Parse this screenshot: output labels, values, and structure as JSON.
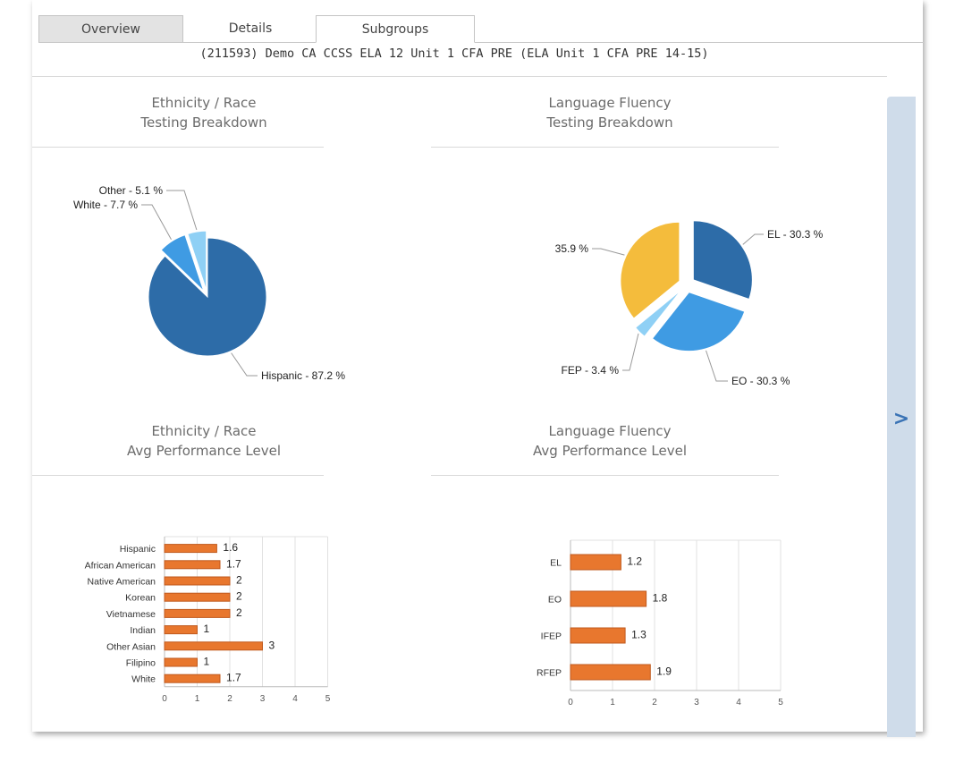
{
  "tabs": [
    {
      "label": "Overview"
    },
    {
      "label": "Details"
    },
    {
      "label": "Subgroups"
    }
  ],
  "assessment_title": "(211593) Demo CA CCSS ELA 12 Unit 1 CFA PRE (ELA Unit 1 CFA PRE 14-15)",
  "side_panel": {
    "arrow": ">"
  },
  "colors": {
    "accent": "#2e6da4",
    "bar": "#e8772e",
    "pie_blue_dark": "#2d6ca8",
    "pie_blue": "#3f9be3",
    "pie_light": "#8fd0f5",
    "pie_yellow": "#f4bc3c"
  },
  "chart_data": [
    {
      "type": "pie",
      "title_line1": "Ethnicity / Race",
      "title_line2": "Testing Breakdown",
      "slices": [
        {
          "label": "Hispanic - 87.2 %",
          "value": 87.2
        },
        {
          "label": "White - 7.7 %",
          "value": 7.7
        },
        {
          "label": "Other - 5.1 %",
          "value": 5.1
        }
      ]
    },
    {
      "type": "pie",
      "title_line1": "Language Fluency",
      "title_line2": "Testing Breakdown",
      "slices": [
        {
          "label": "EL - 30.3 %",
          "value": 30.3
        },
        {
          "label": "EO - 30.3 %",
          "value": 30.3
        },
        {
          "label": "FEP - 3.4 %",
          "value": 3.4
        },
        {
          "label": "35.9 %",
          "value": 35.9
        }
      ]
    },
    {
      "type": "bar",
      "title_line1": "Ethnicity / Race",
      "title_line2": "Avg Performance Level",
      "categories": [
        "Hispanic",
        "African American",
        "Native American",
        "Korean",
        "Vietnamese",
        "Indian",
        "Other Asian",
        "Filipino",
        "White"
      ],
      "values": [
        1.6,
        1.7,
        2,
        2,
        2,
        1,
        3,
        1,
        1.7
      ],
      "value_labels": [
        "1.6",
        "1.7",
        "2",
        "2",
        "2",
        "1",
        "3",
        "1",
        "1.7"
      ],
      "xlim": [
        0,
        5
      ],
      "xticks": [
        "0",
        "1",
        "2",
        "3",
        "4",
        "5"
      ]
    },
    {
      "type": "bar",
      "title_line1": "Language Fluency",
      "title_line2": "Avg Performance Level",
      "categories": [
        "EL",
        "EO",
        "IFEP",
        "RFEP"
      ],
      "values": [
        1.2,
        1.8,
        1.3,
        1.9
      ],
      "value_labels": [
        "1.2",
        "1.8",
        "1.3",
        "1.9"
      ],
      "xlim": [
        0,
        5
      ],
      "xticks": [
        "0",
        "1",
        "2",
        "3",
        "4",
        "5"
      ]
    }
  ]
}
